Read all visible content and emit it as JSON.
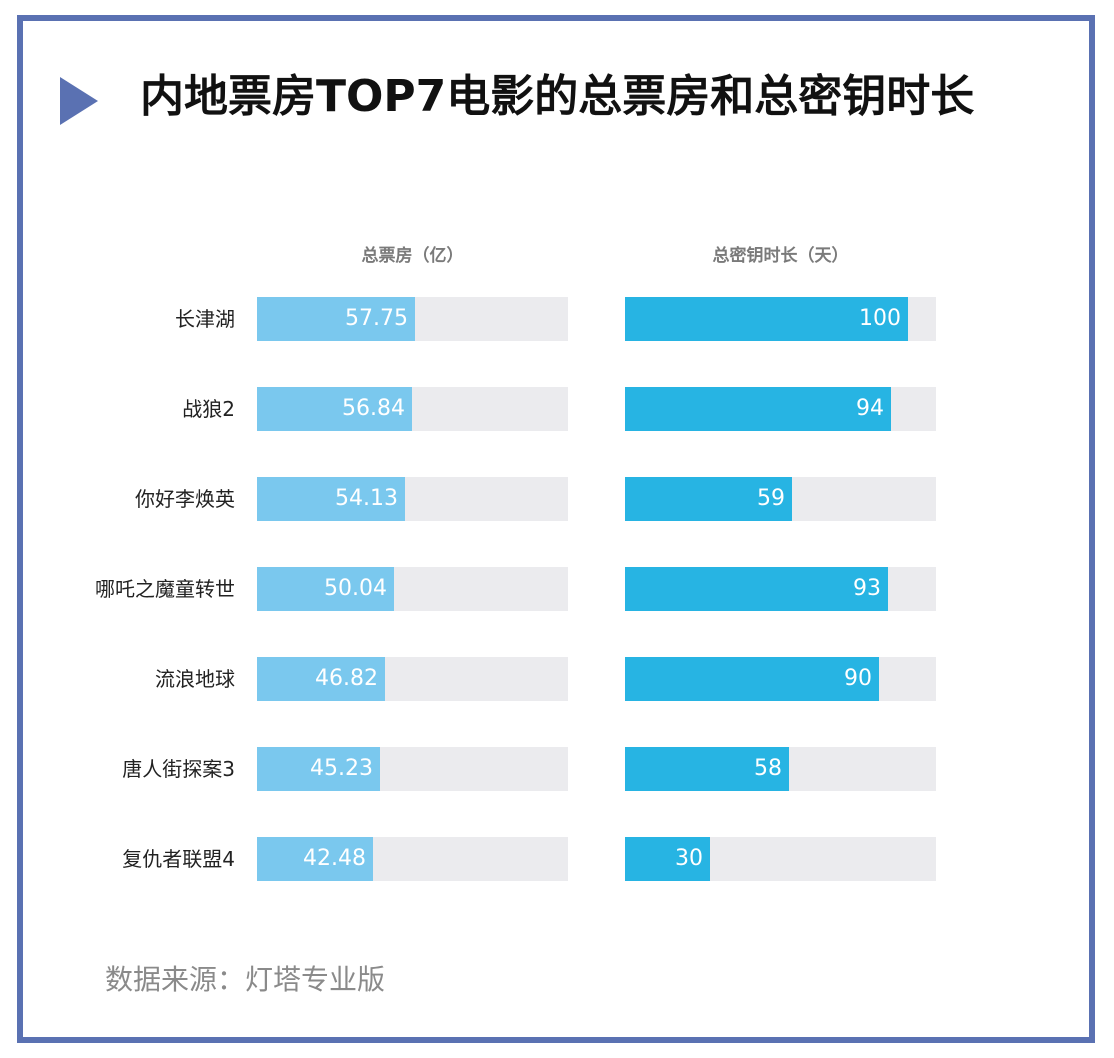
{
  "title": "内地票房TOP7电影的总票房和总密钥时长",
  "source": "数据来源：灯塔专业版",
  "colors": {
    "frame": "#5a71b2",
    "box_office_bar": "#7ac8ee",
    "key_bar": "#27b4e3",
    "track": "#ebebee"
  },
  "chart_data": {
    "type": "bar",
    "orientation": "horizontal",
    "categories": [
      "长津湖",
      "战狼2",
      "你好李焕英",
      "哪吒之魔童转世",
      "流浪地球",
      "唐人街探案3",
      "复仇者联盟4"
    ],
    "series": [
      {
        "name": "总票房（亿）",
        "values": [
          57.75,
          56.84,
          54.13,
          50.04,
          46.82,
          45.23,
          42.48
        ],
        "labels": [
          "57.75",
          "56.84",
          "54.13",
          "50.04",
          "46.82",
          "45.23",
          "42.48"
        ],
        "xlim": [
          0,
          114
        ]
      },
      {
        "name": "总密钥时长（天）",
        "values": [
          100,
          94,
          59,
          93,
          90,
          58,
          30
        ],
        "labels": [
          "100",
          "94",
          "59",
          "93",
          "90",
          "58",
          "30"
        ],
        "xlim": [
          0,
          110
        ]
      }
    ]
  }
}
